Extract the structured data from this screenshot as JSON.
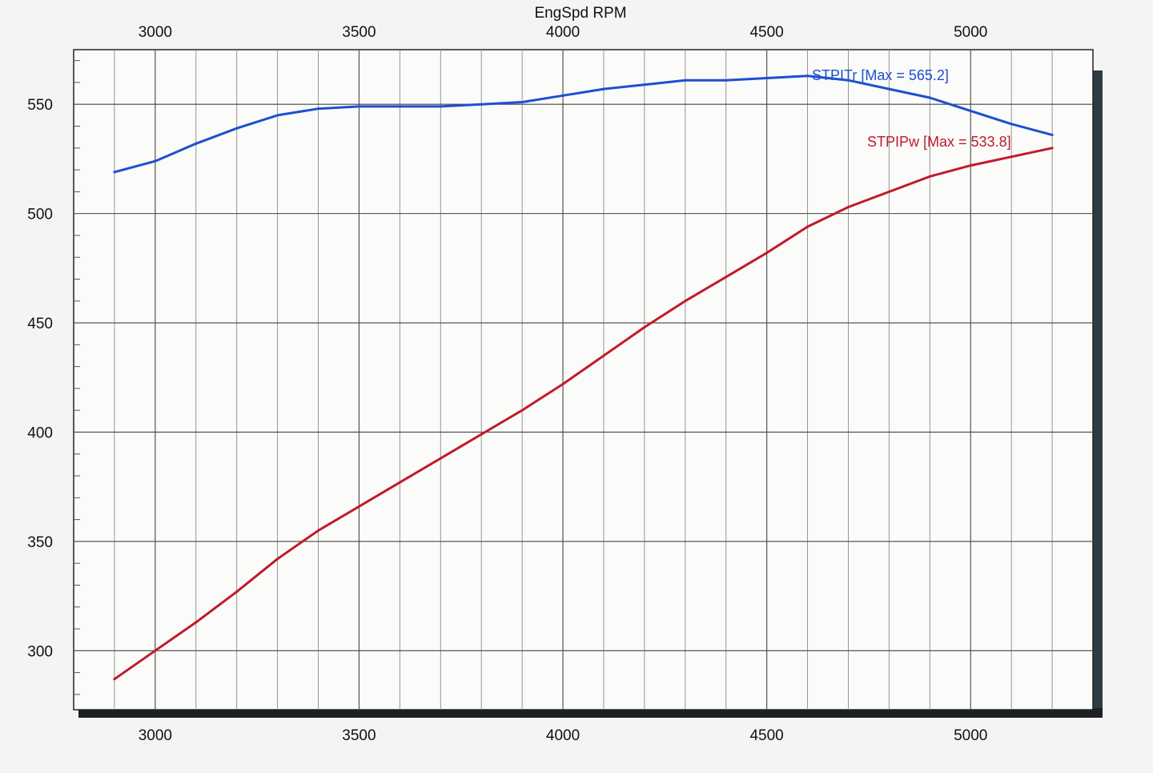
{
  "chart_data": {
    "type": "line",
    "title": "",
    "xlabel": "EngSpd RPM",
    "ylabel": "",
    "xlim": [
      2800,
      5300
    ],
    "ylim": [
      273,
      575
    ],
    "x_ticks": [
      3000,
      3500,
      4000,
      4500,
      5000
    ],
    "y_ticks": [
      300,
      350,
      400,
      450,
      500,
      550
    ],
    "x_tick_labels_top": [
      "3000",
      "3500",
      "4000",
      "4500",
      "5000"
    ],
    "x_tick_labels_bottom": [
      "3000",
      "3500",
      "4000",
      "4500",
      "5000"
    ],
    "y_tick_labels": [
      "300",
      "350",
      "400",
      "450",
      "500",
      "550"
    ],
    "grid": true,
    "legend": "inline labels near line ends (top-right)",
    "series": [
      {
        "name": "STPITr [Max = 565.2]",
        "color": "#1e4fd0",
        "x": [
          2900,
          3000,
          3100,
          3200,
          3300,
          3400,
          3500,
          3600,
          3700,
          3800,
          3900,
          4000,
          4100,
          4200,
          4300,
          4400,
          4500,
          4600,
          4700,
          4800,
          4900,
          5000,
          5100,
          5200
        ],
        "y": [
          519,
          524,
          532,
          539,
          545,
          548,
          549,
          549,
          549,
          550,
          551,
          554,
          557,
          559,
          561,
          561,
          562,
          563,
          561,
          557,
          553,
          547,
          541,
          536
        ]
      },
      {
        "name": "STPIPw [Max = 533.8]",
        "color": "#c01b2b",
        "x": [
          2900,
          3000,
          3100,
          3200,
          3300,
          3400,
          3500,
          3600,
          3700,
          3800,
          3900,
          4000,
          4100,
          4200,
          4300,
          4400,
          4500,
          4600,
          4700,
          4800,
          4900,
          5000,
          5100,
          5200
        ],
        "y": [
          287,
          300,
          313,
          327,
          342,
          355,
          366,
          377,
          388,
          399,
          410,
          422,
          435,
          448,
          460,
          471,
          482,
          494,
          503,
          510,
          517,
          522,
          526,
          530
        ]
      }
    ]
  }
}
